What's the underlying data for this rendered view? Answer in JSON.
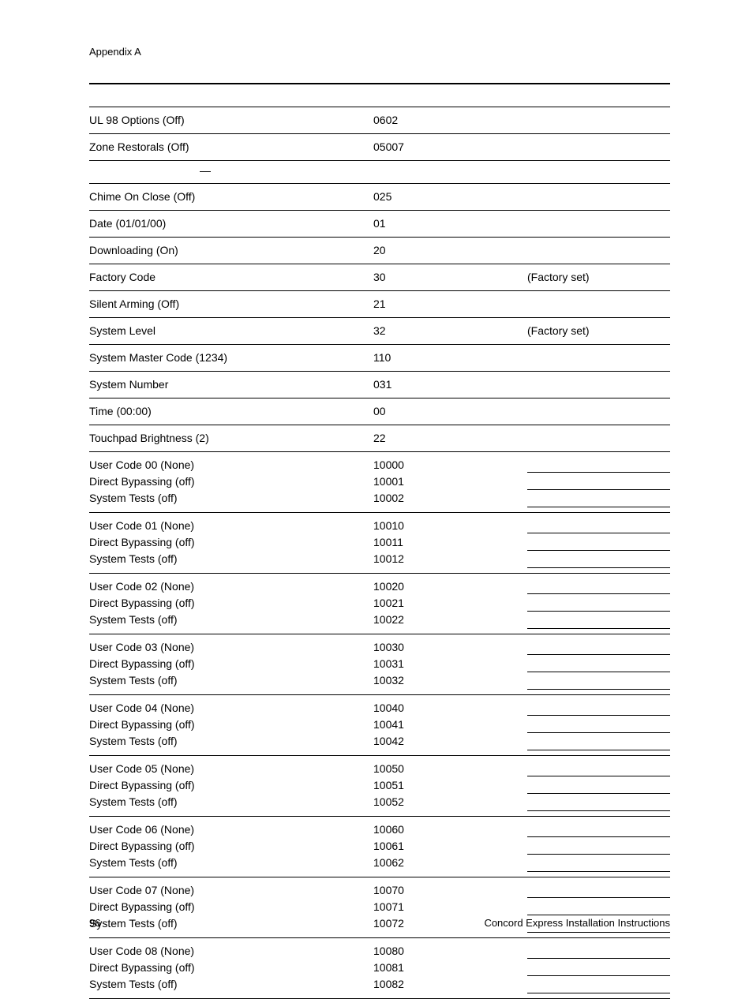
{
  "header": {
    "label": "Appendix A"
  },
  "rows_top": [
    {
      "c1": "UL 98 Options (Off)",
      "c2": "0602",
      "c3": "",
      "topborder": true
    },
    {
      "c1": "Zone Restorals (Off)",
      "c2": "05007",
      "c3": ""
    }
  ],
  "dash": "—",
  "rows_mid": [
    {
      "c1": "Chime On Close (Off)",
      "c2": "025",
      "c3": ""
    },
    {
      "c1": "Date (01/01/00)",
      "c2": "01",
      "c3": ""
    },
    {
      "c1": "Downloading (On)",
      "c2": "20",
      "c3": ""
    },
    {
      "c1": "Factory Code",
      "c2": "30",
      "c3": "(Factory set)"
    },
    {
      "c1": "Silent Arming (Off)",
      "c2": "21",
      "c3": ""
    },
    {
      "c1": "System Level",
      "c2": "32",
      "c3": "(Factory set)"
    },
    {
      "c1": "System Master Code (1234)",
      "c2": "110",
      "c3": ""
    },
    {
      "c1": "System Number",
      "c2": "031",
      "c3": ""
    },
    {
      "c1": "Time (00:00)",
      "c2": "00",
      "c3": ""
    },
    {
      "c1": "Touchpad Brightness (2)",
      "c2": "22",
      "c3": ""
    }
  ],
  "user_codes": [
    {
      "lines": [
        "User Code 00 (None)",
        "Direct Bypassing (off)",
        "System Tests (off)"
      ],
      "codes": [
        "10000",
        "10001",
        "10002"
      ]
    },
    {
      "lines": [
        "User Code 01 (None)",
        "Direct Bypassing (off)",
        "System Tests (off)"
      ],
      "codes": [
        "10010",
        "10011",
        "10012"
      ]
    },
    {
      "lines": [
        "User Code 02 (None)",
        "Direct Bypassing (off)",
        "System Tests (off)"
      ],
      "codes": [
        "10020",
        "10021",
        "10022"
      ]
    },
    {
      "lines": [
        "User Code 03 (None)",
        "Direct Bypassing (off)",
        "System Tests (off)"
      ],
      "codes": [
        "10030",
        "10031",
        "10032"
      ]
    },
    {
      "lines": [
        "User Code 04 (None)",
        "Direct Bypassing (off)",
        "System Tests (off)"
      ],
      "codes": [
        "10040",
        "10041",
        "10042"
      ]
    },
    {
      "lines": [
        "User Code 05 (None)",
        "Direct Bypassing (off)",
        "System Tests (off)"
      ],
      "codes": [
        "10050",
        "10051",
        "10052"
      ]
    },
    {
      "lines": [
        "User Code 06 (None)",
        "Direct Bypassing (off)",
        "System Tests (off)"
      ],
      "codes": [
        "10060",
        "10061",
        "10062"
      ]
    },
    {
      "lines": [
        "User Code 07 (None)",
        "Direct Bypassing (off)",
        "System Tests (off)"
      ],
      "codes": [
        "10070",
        "10071",
        "10072"
      ]
    },
    {
      "lines": [
        "User Code 08 (None)",
        "Direct Bypassing (off)",
        "System Tests (off)"
      ],
      "codes": [
        "10080",
        "10081",
        "10082"
      ]
    }
  ],
  "footer": {
    "page": "96",
    "title": "Concord Express Installation Instructions"
  }
}
